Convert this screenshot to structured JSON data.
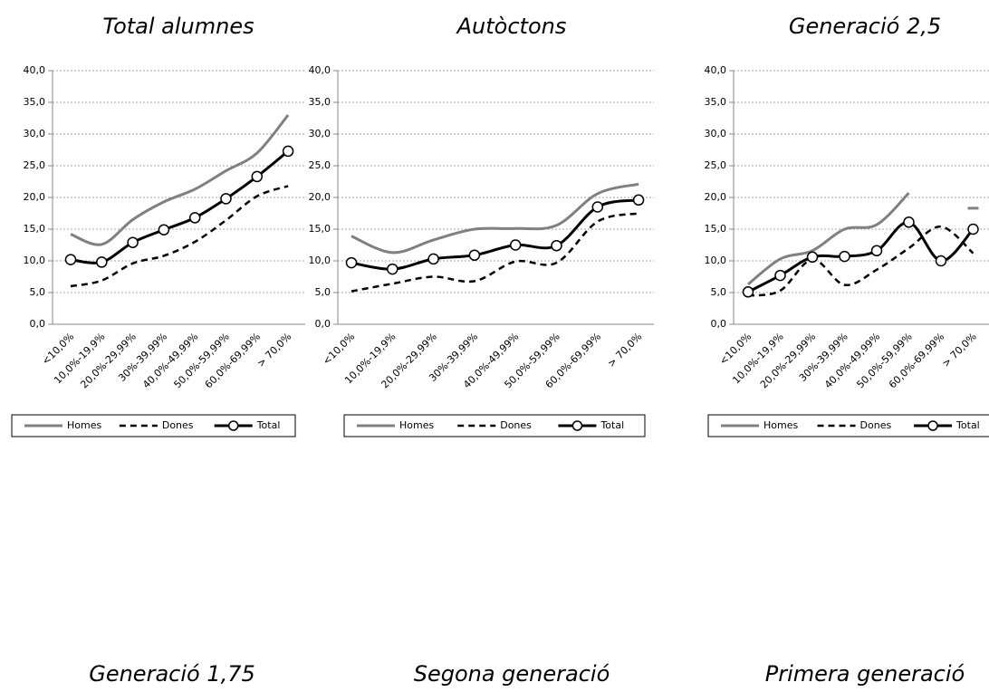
{
  "chart_data": [
    {
      "type": "line",
      "title": "Total alumnes",
      "categories": [
        "<10,0%",
        "10,0%-19,9%",
        "20,0%-29,99%",
        "30%-39,99%",
        "40,0%-49,99%",
        "50,0%-59,99%",
        "60,0%-69,99%",
        "> 70,0%"
      ],
      "series": [
        {
          "name": "Homes",
          "color": "#808080",
          "line_style": "solid",
          "values": [
            14.2,
            12.6,
            16.5,
            19.3,
            21.3,
            24.2,
            27.0,
            33.0
          ]
        },
        {
          "name": "Dones",
          "color": "#000000",
          "line_style": "dashed",
          "values": [
            6.0,
            6.9,
            9.6,
            10.8,
            13.0,
            16.4,
            20.2,
            21.8
          ]
        },
        {
          "name": "Total",
          "color": "#000000",
          "line_style": "solid",
          "marker": "circle",
          "values": [
            10.2,
            9.8,
            12.9,
            14.9,
            16.8,
            19.8,
            23.3,
            27.3
          ]
        }
      ],
      "ylim": [
        0,
        40
      ],
      "yticks": [
        {
          "value": 0,
          "label": "0,0"
        },
        {
          "value": 5,
          "label": "5,0"
        },
        {
          "value": 10,
          "label": "10,0"
        },
        {
          "value": 15,
          "label": "15,0"
        },
        {
          "value": 20,
          "label": "20,0"
        },
        {
          "value": 25,
          "label": "25,0"
        },
        {
          "value": 30,
          "label": "30,0"
        },
        {
          "value": 35,
          "label": "35,0"
        },
        {
          "value": 40,
          "label": "40,0"
        }
      ],
      "grid": true,
      "legend": "bottom"
    },
    {
      "type": "line",
      "title": "Autòctons",
      "categories": [
        "<10,0%",
        "10,0%-19,9%",
        "20,0%-29,99%",
        "30%-39,99%",
        "40,0%-49,99%",
        "50,0%-59,99%",
        "60,0%-69,99%",
        "> 70,0%"
      ],
      "series": [
        {
          "name": "Homes",
          "color": "#808080",
          "line_style": "solid",
          "values": [
            13.9,
            11.3,
            13.3,
            15.0,
            15.1,
            15.6,
            20.6,
            22.1
          ]
        },
        {
          "name": "Dones",
          "color": "#000000",
          "line_style": "dashed",
          "values": [
            5.2,
            6.4,
            7.5,
            6.8,
            9.9,
            9.7,
            16.2,
            17.5
          ]
        },
        {
          "name": "Total",
          "color": "#000000",
          "line_style": "solid",
          "marker": "circle",
          "values": [
            9.7,
            8.7,
            10.3,
            10.9,
            12.5,
            12.4,
            18.5,
            19.6
          ]
        }
      ],
      "ylim": [
        0,
        40
      ],
      "yticks": [
        {
          "value": 0,
          "label": "0,0"
        },
        {
          "value": 5,
          "label": "5,0"
        },
        {
          "value": 10,
          "label": "10,0"
        },
        {
          "value": 15,
          "label": "15,0"
        },
        {
          "value": 20,
          "label": "20,0"
        },
        {
          "value": 25,
          "label": "25,0"
        },
        {
          "value": 30,
          "label": "30,0"
        },
        {
          "value": 35,
          "label": "35,0"
        },
        {
          "value": 40,
          "label": "40,0"
        }
      ],
      "grid": true,
      "legend": "bottom"
    },
    {
      "type": "line",
      "title": "Generació 2,5",
      "categories": [
        "<10,0%",
        "10,0%-19,9%",
        "20,0%-29,99%",
        "30%-39,99%",
        "40,0%-49,99%",
        "50,0%-59,99%",
        "60,0%-69,99%",
        "> 70,0%"
      ],
      "series": [
        {
          "name": "Homes",
          "color": "#808080",
          "line_style": "solid",
          "values": [
            6.3,
            10.3,
            11.6,
            15.0,
            15.7,
            20.7,
            null,
            18.3
          ]
        },
        {
          "name": "Dones",
          "color": "#000000",
          "line_style": "dashed",
          "values": [
            4.5,
            5.3,
            10.2,
            6.2,
            8.6,
            12.0,
            15.4,
            11.2
          ]
        },
        {
          "name": "Total",
          "color": "#000000",
          "line_style": "solid",
          "marker": "circle",
          "values": [
            5.1,
            7.7,
            10.6,
            10.7,
            11.6,
            16.1,
            10.0,
            15.0
          ]
        }
      ],
      "ylim": [
        0,
        40
      ],
      "yticks": [
        {
          "value": 0,
          "label": "0,0"
        },
        {
          "value": 5,
          "label": "5,0"
        },
        {
          "value": 10,
          "label": "10,0"
        },
        {
          "value": 15,
          "label": "15,0"
        },
        {
          "value": 20,
          "label": "20,0"
        },
        {
          "value": 25,
          "label": "25,0"
        },
        {
          "value": 30,
          "label": "30,0"
        },
        {
          "value": 35,
          "label": "35,0"
        },
        {
          "value": 40,
          "label": "40,0"
        }
      ],
      "grid": true,
      "legend": "bottom"
    },
    {
      "type": "line",
      "title": "Generació 1,75"
    },
    {
      "type": "line",
      "title": "Segona generació"
    },
    {
      "type": "line",
      "title": "Primera generació"
    }
  ]
}
